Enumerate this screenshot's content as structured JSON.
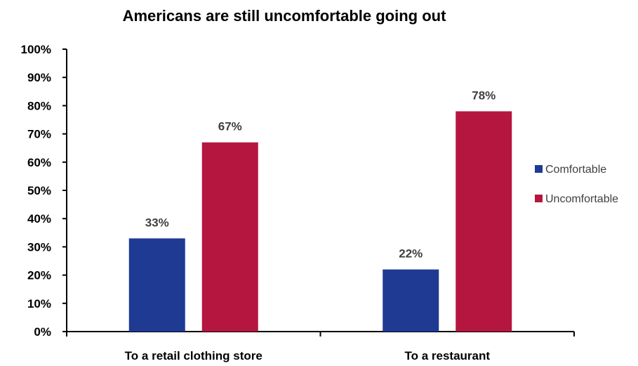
{
  "chart_data": {
    "type": "bar",
    "title": "Americans are still uncomfortable going out",
    "categories": [
      "To a retail clothing store",
      "To a restaurant"
    ],
    "series": [
      {
        "name": "Comfortable",
        "values": [
          33,
          22
        ],
        "color": "#1f3a93"
      },
      {
        "name": "Uncomfortable",
        "values": [
          67,
          78
        ],
        "color": "#b5163f"
      }
    ],
    "data_labels": [
      [
        "33%",
        "22%"
      ],
      [
        "67%",
        "78%"
      ]
    ],
    "ylim": [
      0,
      100
    ],
    "yticks": [
      "0%",
      "10%",
      "20%",
      "30%",
      "40%",
      "50%",
      "60%",
      "70%",
      "80%",
      "90%",
      "100%"
    ],
    "xlabel": "",
    "ylabel": "",
    "grid": false,
    "legend_position": "right"
  }
}
